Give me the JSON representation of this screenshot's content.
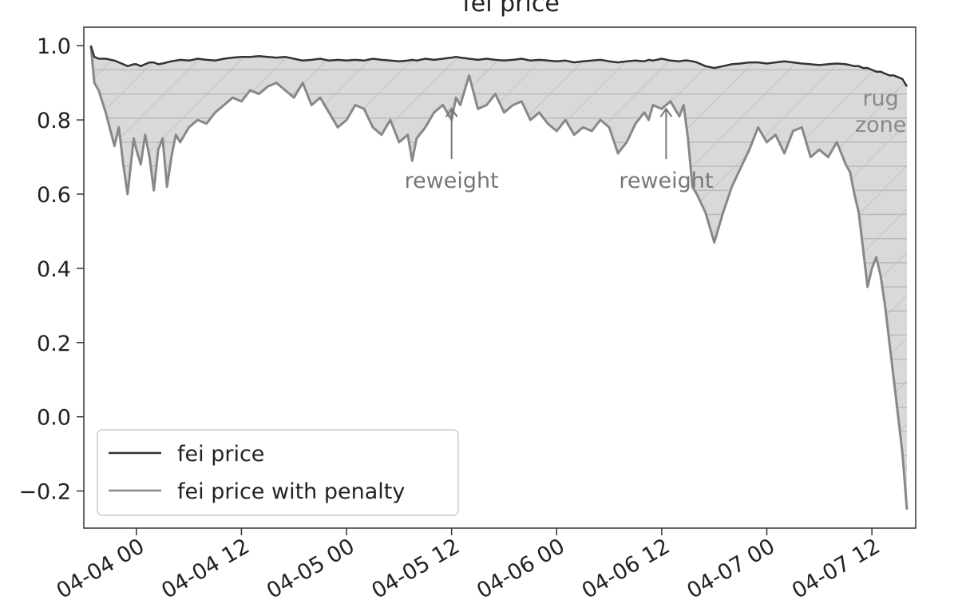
{
  "chart_data": {
    "type": "line",
    "title": "fei price",
    "xlabel": "",
    "ylabel": "",
    "x_ticks": [
      "04-04 00",
      "04-04 12",
      "04-05 00",
      "04-05 12",
      "04-06 00",
      "04-06 12",
      "04-07 00",
      "04-07 12"
    ],
    "y_ticks": [
      "1.0",
      "0.8",
      "0.6",
      "0.4",
      "0.2",
      "0.0",
      "−0.2"
    ],
    "ylim": [
      -0.3,
      1.05
    ],
    "xlim_hours_from_04_04_00": [
      -6.0,
      89.0
    ],
    "grid": false,
    "legend": "lower-left",
    "x_hours_from_04_04_00": [
      -5.2,
      -4.8,
      -4.3,
      -3.5,
      -2.5,
      -2.0,
      -1.5,
      -1.0,
      -0.3,
      0.0,
      0.5,
      1.0,
      1.5,
      2.0,
      2.5,
      3.0,
      3.5,
      4.0,
      4.5,
      5.0,
      6.0,
      7.0,
      8.0,
      9.0,
      10.0,
      11.0,
      12.0,
      13.0,
      14.0,
      15.0,
      16.0,
      17.0,
      18.0,
      19.0,
      20.0,
      21.0,
      22.0,
      23.0,
      24.0,
      25.0,
      26.0,
      27.0,
      28.0,
      29.0,
      30.0,
      31.0,
      31.5,
      32.0,
      33.0,
      34.0,
      35.0,
      36.0,
      36.5,
      37.0,
      38.0,
      39.0,
      40.0,
      41.0,
      42.0,
      43.0,
      44.0,
      45.0,
      46.0,
      47.0,
      48.0,
      49.0,
      50.0,
      51.0,
      52.0,
      53.0,
      54.0,
      55.0,
      56.0,
      57.0,
      58.0,
      58.5,
      59.0,
      60.0,
      61.0,
      62.0,
      62.5,
      63.0,
      63.5,
      64.0,
      65.0,
      66.0,
      67.0,
      68.0,
      69.0,
      70.0,
      71.0,
      72.0,
      73.0,
      74.0,
      75.0,
      76.0,
      77.0,
      78.0,
      79.0,
      80.0,
      81.0,
      81.5,
      82.0,
      82.5,
      83.0,
      83.5,
      84.0,
      84.5,
      85.0,
      85.5,
      86.0,
      86.5,
      87.0,
      87.5,
      88.0
    ],
    "series": [
      {
        "name": "fei price",
        "color": "#333333",
        "values": [
          1.0,
          0.97,
          0.965,
          0.965,
          0.96,
          0.955,
          0.95,
          0.945,
          0.95,
          0.95,
          0.945,
          0.95,
          0.955,
          0.955,
          0.95,
          0.952,
          0.955,
          0.958,
          0.96,
          0.962,
          0.96,
          0.965,
          0.962,
          0.96,
          0.965,
          0.968,
          0.97,
          0.97,
          0.972,
          0.97,
          0.968,
          0.97,
          0.965,
          0.96,
          0.962,
          0.965,
          0.96,
          0.962,
          0.96,
          0.962,
          0.96,
          0.965,
          0.962,
          0.96,
          0.958,
          0.96,
          0.962,
          0.96,
          0.965,
          0.962,
          0.965,
          0.968,
          0.97,
          0.968,
          0.965,
          0.962,
          0.965,
          0.962,
          0.96,
          0.962,
          0.965,
          0.96,
          0.962,
          0.96,
          0.958,
          0.96,
          0.955,
          0.958,
          0.96,
          0.962,
          0.958,
          0.955,
          0.958,
          0.96,
          0.958,
          0.962,
          0.96,
          0.965,
          0.96,
          0.958,
          0.96,
          0.96,
          0.958,
          0.955,
          0.945,
          0.94,
          0.945,
          0.95,
          0.952,
          0.955,
          0.955,
          0.952,
          0.955,
          0.958,
          0.955,
          0.952,
          0.95,
          0.948,
          0.95,
          0.952,
          0.95,
          0.948,
          0.945,
          0.945,
          0.94,
          0.94,
          0.935,
          0.93,
          0.93,
          0.925,
          0.92,
          0.92,
          0.915,
          0.91,
          0.89
        ]
      },
      {
        "name": "fei price with penalty",
        "color": "#888888",
        "values": [
          1.0,
          0.9,
          0.88,
          0.82,
          0.73,
          0.78,
          0.68,
          0.6,
          0.75,
          0.72,
          0.68,
          0.76,
          0.7,
          0.61,
          0.72,
          0.75,
          0.62,
          0.7,
          0.76,
          0.74,
          0.78,
          0.8,
          0.79,
          0.82,
          0.84,
          0.86,
          0.85,
          0.88,
          0.87,
          0.89,
          0.9,
          0.88,
          0.86,
          0.9,
          0.84,
          0.86,
          0.82,
          0.78,
          0.8,
          0.84,
          0.83,
          0.78,
          0.76,
          0.8,
          0.74,
          0.76,
          0.69,
          0.75,
          0.78,
          0.82,
          0.84,
          0.8,
          0.86,
          0.84,
          0.92,
          0.83,
          0.84,
          0.87,
          0.82,
          0.84,
          0.85,
          0.8,
          0.82,
          0.79,
          0.77,
          0.8,
          0.76,
          0.78,
          0.77,
          0.8,
          0.78,
          0.71,
          0.74,
          0.79,
          0.82,
          0.8,
          0.84,
          0.83,
          0.85,
          0.81,
          0.84,
          0.75,
          0.62,
          0.6,
          0.55,
          0.47,
          0.55,
          0.62,
          0.67,
          0.72,
          0.78,
          0.74,
          0.76,
          0.71,
          0.77,
          0.78,
          0.7,
          0.72,
          0.7,
          0.74,
          0.68,
          0.66,
          0.6,
          0.55,
          0.45,
          0.35,
          0.4,
          0.43,
          0.38,
          0.3,
          0.2,
          0.1,
          0.0,
          -0.1,
          -0.25
        ]
      }
    ],
    "annotations": [
      {
        "text": "reweight",
        "x_hours_from_04_04_00": 36.0,
        "arrow_tip_y": 0.83,
        "text_y": 0.63
      },
      {
        "text": "reweight",
        "x_hours_from_04_04_00": 60.5,
        "arrow_tip_y": 0.83,
        "text_y": 0.63
      },
      {
        "text": "rug",
        "x_hours_from_04_04_00": 85.0,
        "y": 0.86
      },
      {
        "text": "zone",
        "x_hours_from_04_04_00": 85.0,
        "y": 0.79
      }
    ]
  }
}
